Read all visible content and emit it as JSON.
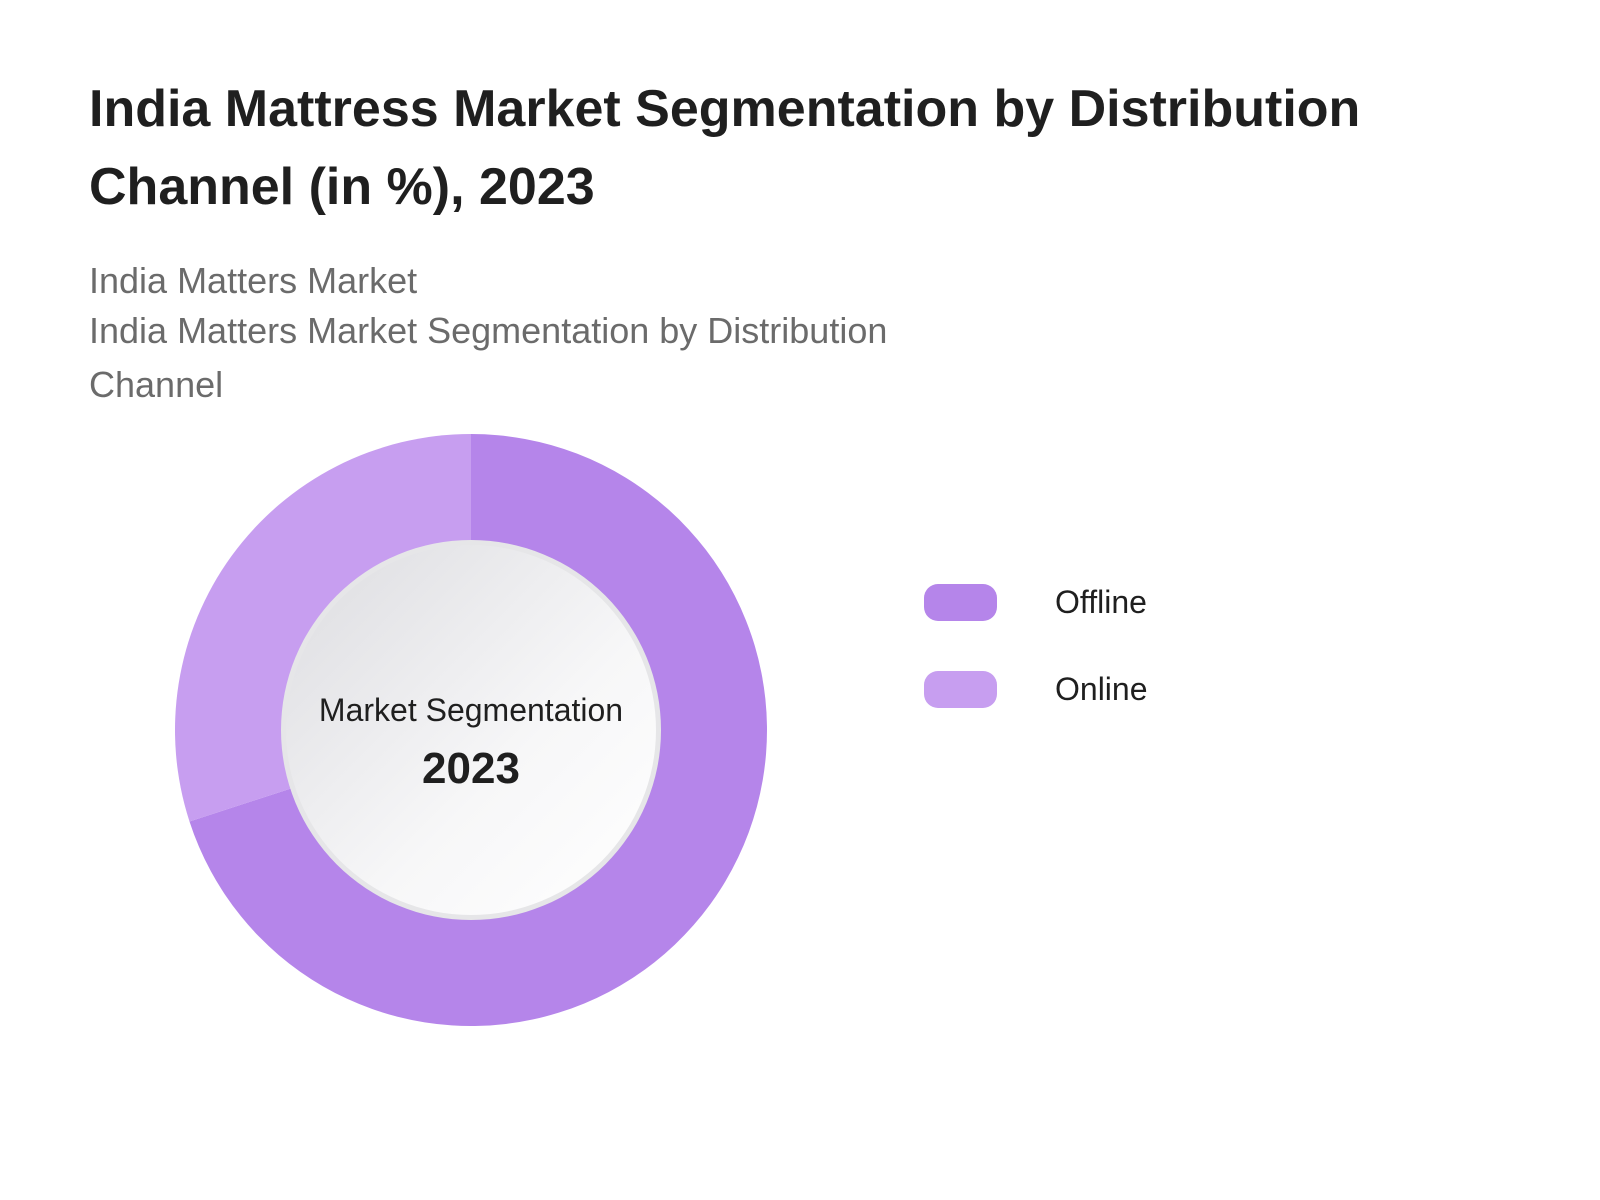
{
  "chart_data": {
    "type": "pie",
    "title": "India Mattress Market Segmentation by Distribution Channel (in %), 2023",
    "subtitle_lines": [
      "India Matters Market",
      "India Matters Market Segmentation by Distribution",
      "Channel"
    ],
    "center_label": "Market Segmentation",
    "center_year": "2023",
    "categories": [
      "Offline",
      "Online"
    ],
    "values": [
      70,
      30
    ],
    "colors": [
      "#b585ea",
      "#c79ef0"
    ],
    "legend": "right",
    "donut": true
  }
}
